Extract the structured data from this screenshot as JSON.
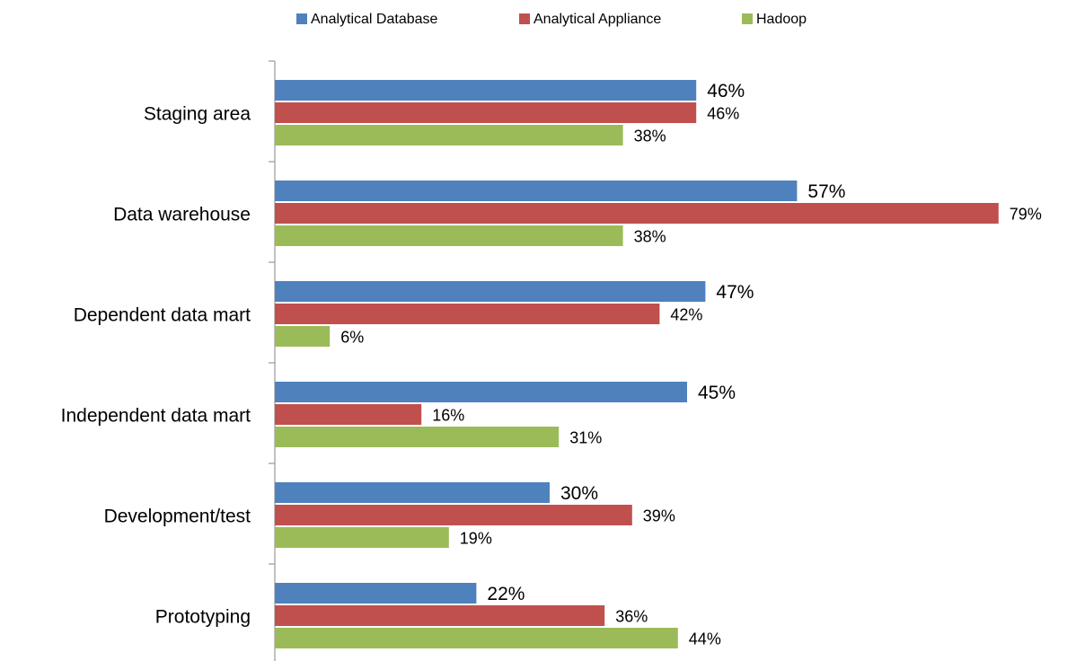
{
  "chart_data": {
    "type": "bar",
    "orientation": "horizontal",
    "categories": [
      "Staging area",
      "Data warehouse",
      "Dependent data mart",
      "Independent data mart",
      "Development/test",
      "Prototyping"
    ],
    "series": [
      {
        "name": "Analytical Database",
        "color": "#4f81bd",
        "values": [
          46,
          57,
          47,
          45,
          30,
          22
        ],
        "value_labels": [
          "46%",
          "57%",
          "47%",
          "45%",
          "30%",
          "22%"
        ]
      },
      {
        "name": "Analytical Appliance",
        "color": "#c0504d",
        "values": [
          46,
          79,
          42,
          16,
          39,
          36
        ],
        "value_labels": [
          "46%",
          "79%",
          "42%",
          "16%",
          "39%",
          "36%"
        ]
      },
      {
        "name": "Hadoop",
        "color": "#9bbb59",
        "values": [
          38,
          38,
          6,
          31,
          19,
          44
        ],
        "value_labels": [
          "38%",
          "38%",
          "6%",
          "31%",
          "19%",
          "44%"
        ]
      }
    ],
    "xlim": [
      0,
      80
    ],
    "legend": "top"
  }
}
